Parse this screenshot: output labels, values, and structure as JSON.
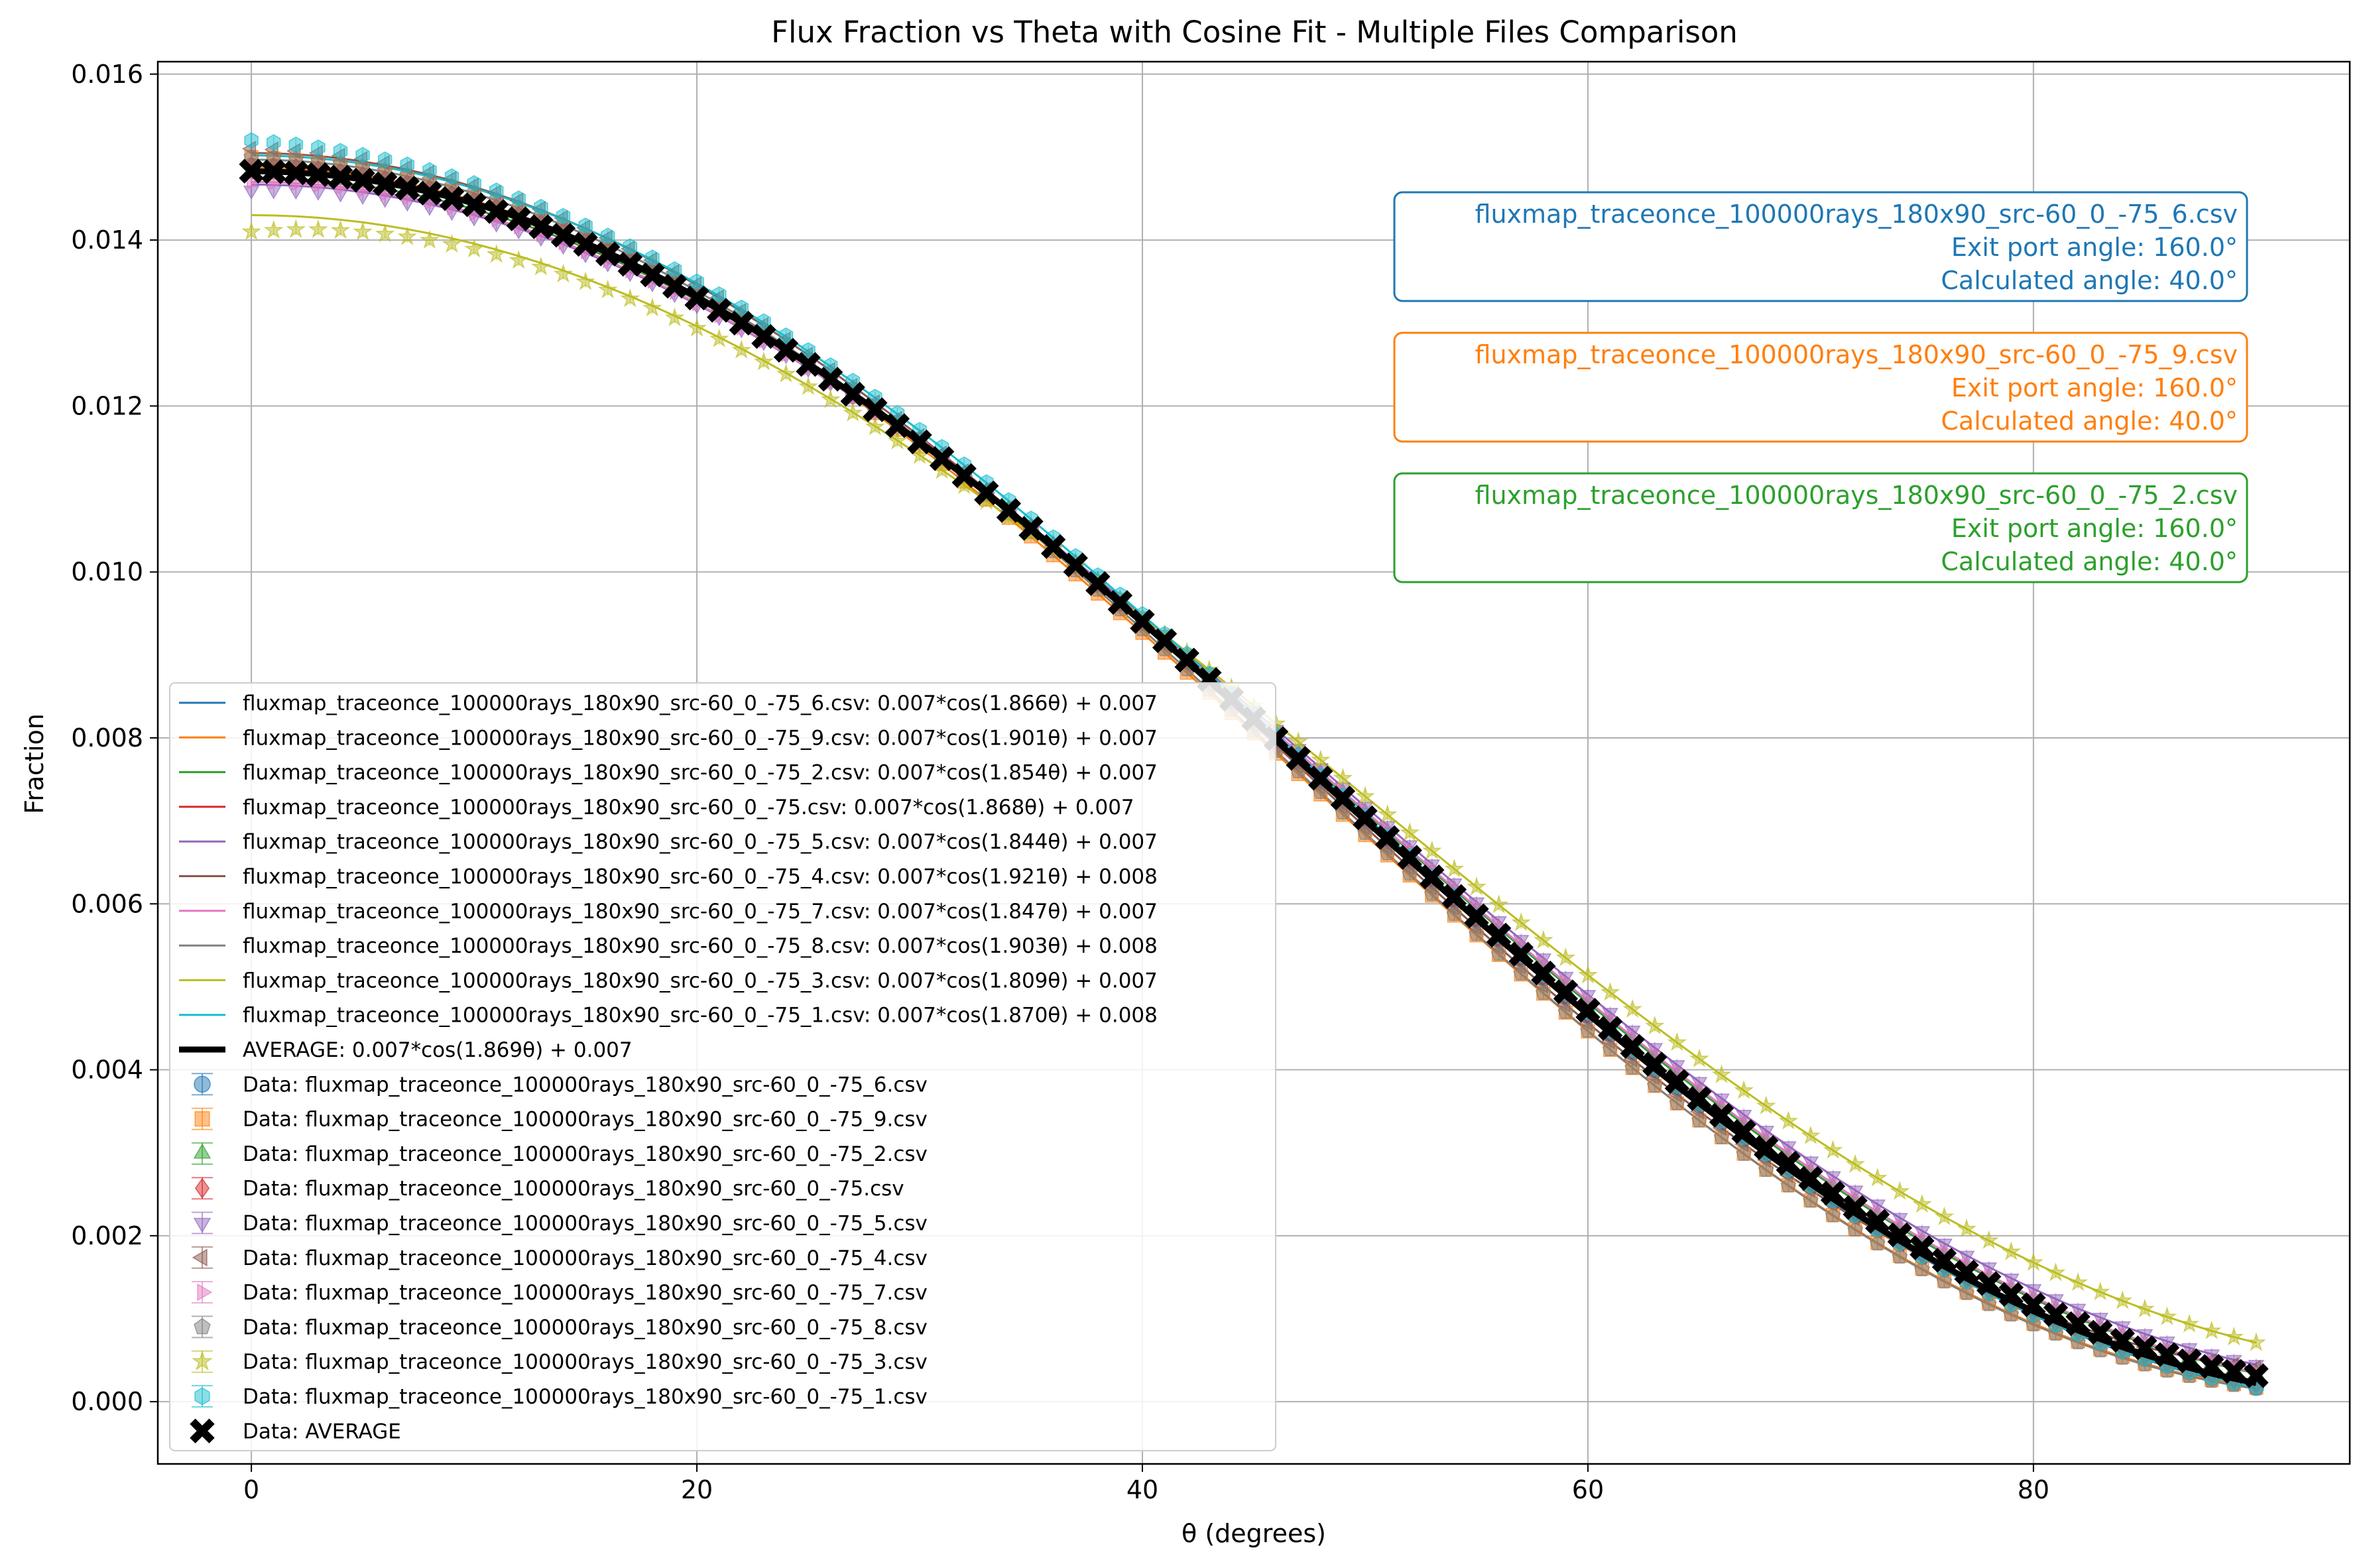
{
  "chart_data": {
    "type": "line",
    "title": "Flux Fraction vs Theta with Cosine Fit - Multiple Files Comparison",
    "xlabel": "θ (degrees)",
    "ylabel": "Fraction",
    "xlim": [
      -4.2,
      94.2
    ],
    "ylim": [
      -0.00075,
      0.01615
    ],
    "x_ticks": [
      0,
      20,
      40,
      60,
      80
    ],
    "y_ticks": [
      0.0,
      0.002,
      0.004,
      0.006,
      0.008,
      0.01,
      0.012,
      0.014,
      0.016
    ],
    "x_tick_labels": [
      "0",
      "20",
      "40",
      "60",
      "80"
    ],
    "y_tick_labels": [
      "0.000",
      "0.002",
      "0.004",
      "0.006",
      "0.008",
      "0.010",
      "0.012",
      "0.014",
      "0.016"
    ],
    "grid": true,
    "legend_position": "lower-left",
    "theta_step": 1,
    "theta_max": 90,
    "fit_series": [
      {
        "name": "fluxmap_traceonce_100000rays_180x90_src-60_0_-75_6.csv: 0.007*cos(1.866θ) + 0.007",
        "color": "#1f77b4",
        "A": 0.00742,
        "w": 1.866,
        "C": 0.00742
      },
      {
        "name": "fluxmap_traceonce_100000rays_180x90_src-60_0_-75_9.csv: 0.007*cos(1.901θ) + 0.007",
        "color": "#ff7f0e",
        "A": 0.0074,
        "w": 1.901,
        "C": 0.00748
      },
      {
        "name": "fluxmap_traceonce_100000rays_180x90_src-60_0_-75_2.csv: 0.007*cos(1.854θ) + 0.007",
        "color": "#2ca02c",
        "A": 0.0073,
        "w": 1.854,
        "C": 0.00745
      },
      {
        "name": "fluxmap_traceonce_100000rays_180x90_src-60_0_-75.csv: 0.007*cos(1.868θ) + 0.007",
        "color": "#d62728",
        "A": 0.0074,
        "w": 1.868,
        "C": 0.00745
      },
      {
        "name": "fluxmap_traceonce_100000rays_180x90_src-60_0_-75_5.csv: 0.007*cos(1.844θ) + 0.007",
        "color": "#9467bd",
        "A": 0.00722,
        "w": 1.844,
        "C": 0.00745
      },
      {
        "name": "fluxmap_traceonce_100000rays_180x90_src-60_0_-75_4.csv: 0.007*cos(1.921θ) + 0.008",
        "color": "#8c564b",
        "A": 0.00735,
        "w": 1.921,
        "C": 0.0077
      },
      {
        "name": "fluxmap_traceonce_100000rays_180x90_src-60_0_-75_7.csv: 0.007*cos(1.847θ) + 0.007",
        "color": "#e377c2",
        "A": 0.00728,
        "w": 1.847,
        "C": 0.00742
      },
      {
        "name": "fluxmap_traceonce_100000rays_180x90_src-60_0_-75_8.csv: 0.007*cos(1.903θ) + 0.008",
        "color": "#7f7f7f",
        "A": 0.00745,
        "w": 1.903,
        "C": 0.00752
      },
      {
        "name": "fluxmap_traceonce_100000rays_180x90_src-60_0_-75_3.csv: 0.007*cos(1.809θ) + 0.007",
        "color": "#bcbd22",
        "A": 0.00695,
        "w": 1.809,
        "C": 0.00735
      },
      {
        "name": "fluxmap_traceonce_100000rays_180x90_src-60_0_-75_1.csv: 0.007*cos(1.870θ) + 0.008",
        "color": "#17becf",
        "A": 0.0075,
        "w": 1.87,
        "C": 0.00752
      }
    ],
    "average_fit": {
      "name": "AVERAGE: 0.007*cos(1.869θ) + 0.007",
      "color": "#000000",
      "A": 0.00738,
      "w": 1.869,
      "C": 0.00745
    },
    "data_series": [
      {
        "name": "Data: fluxmap_traceonce_100000rays_180x90_src-60_0_-75_6.csv",
        "color": "#1f77b4",
        "marker": "circle",
        "y0": 0.0149
      },
      {
        "name": "Data: fluxmap_traceonce_100000rays_180x90_src-60_0_-75_9.csv",
        "color": "#ff7f0e",
        "marker": "square",
        "y0": 0.015
      },
      {
        "name": "Data: fluxmap_traceonce_100000rays_180x90_src-60_0_-75_2.csv",
        "color": "#2ca02c",
        "marker": "triangle-up",
        "y0": 0.0148
      },
      {
        "name": "Data: fluxmap_traceonce_100000rays_180x90_src-60_0_-75.csv",
        "color": "#d62728",
        "marker": "diamond",
        "y0": 0.0149
      },
      {
        "name": "Data: fluxmap_traceonce_100000rays_180x90_src-60_0_-75_5.csv",
        "color": "#9467bd",
        "marker": "triangle-down",
        "y0": 0.0146
      },
      {
        "name": "Data: fluxmap_traceonce_100000rays_180x90_src-60_0_-75_4.csv",
        "color": "#8c564b",
        "marker": "triangle-left",
        "y0": 0.0151
      },
      {
        "name": "Data: fluxmap_traceonce_100000rays_180x90_src-60_0_-75_7.csv",
        "color": "#e377c2",
        "marker": "triangle-right",
        "y0": 0.0147
      },
      {
        "name": "Data: fluxmap_traceonce_100000rays_180x90_src-60_0_-75_8.csv",
        "color": "#7f7f7f",
        "marker": "pentagon",
        "y0": 0.015
      },
      {
        "name": "Data: fluxmap_traceonce_100000rays_180x90_src-60_0_-75_3.csv",
        "color": "#bcbd22",
        "marker": "star",
        "y0": 0.0141
      },
      {
        "name": "Data: fluxmap_traceonce_100000rays_180x90_src-60_0_-75_1.csv",
        "color": "#17becf",
        "marker": "hexagon",
        "y0": 0.0152
      }
    ],
    "average_data": {
      "name": "Data: AVERAGE",
      "color": "#000000",
      "marker": "x-thick"
    },
    "annotations": [
      {
        "file": "fluxmap_traceonce_100000rays_180x90_src-60_0_-75_6.csv",
        "exit": "Exit port angle: 160.0°",
        "calc": "Calculated angle: 40.0°",
        "color": "#1f77b4"
      },
      {
        "file": "fluxmap_traceonce_100000rays_180x90_src-60_0_-75_9.csv",
        "exit": "Exit port angle: 160.0°",
        "calc": "Calculated angle: 40.0°",
        "color": "#ff7f0e"
      },
      {
        "file": "fluxmap_traceonce_100000rays_180x90_src-60_0_-75_2.csv",
        "exit": "Exit port angle: 160.0°",
        "calc": "Calculated angle: 40.0°",
        "color": "#2ca02c"
      }
    ]
  }
}
